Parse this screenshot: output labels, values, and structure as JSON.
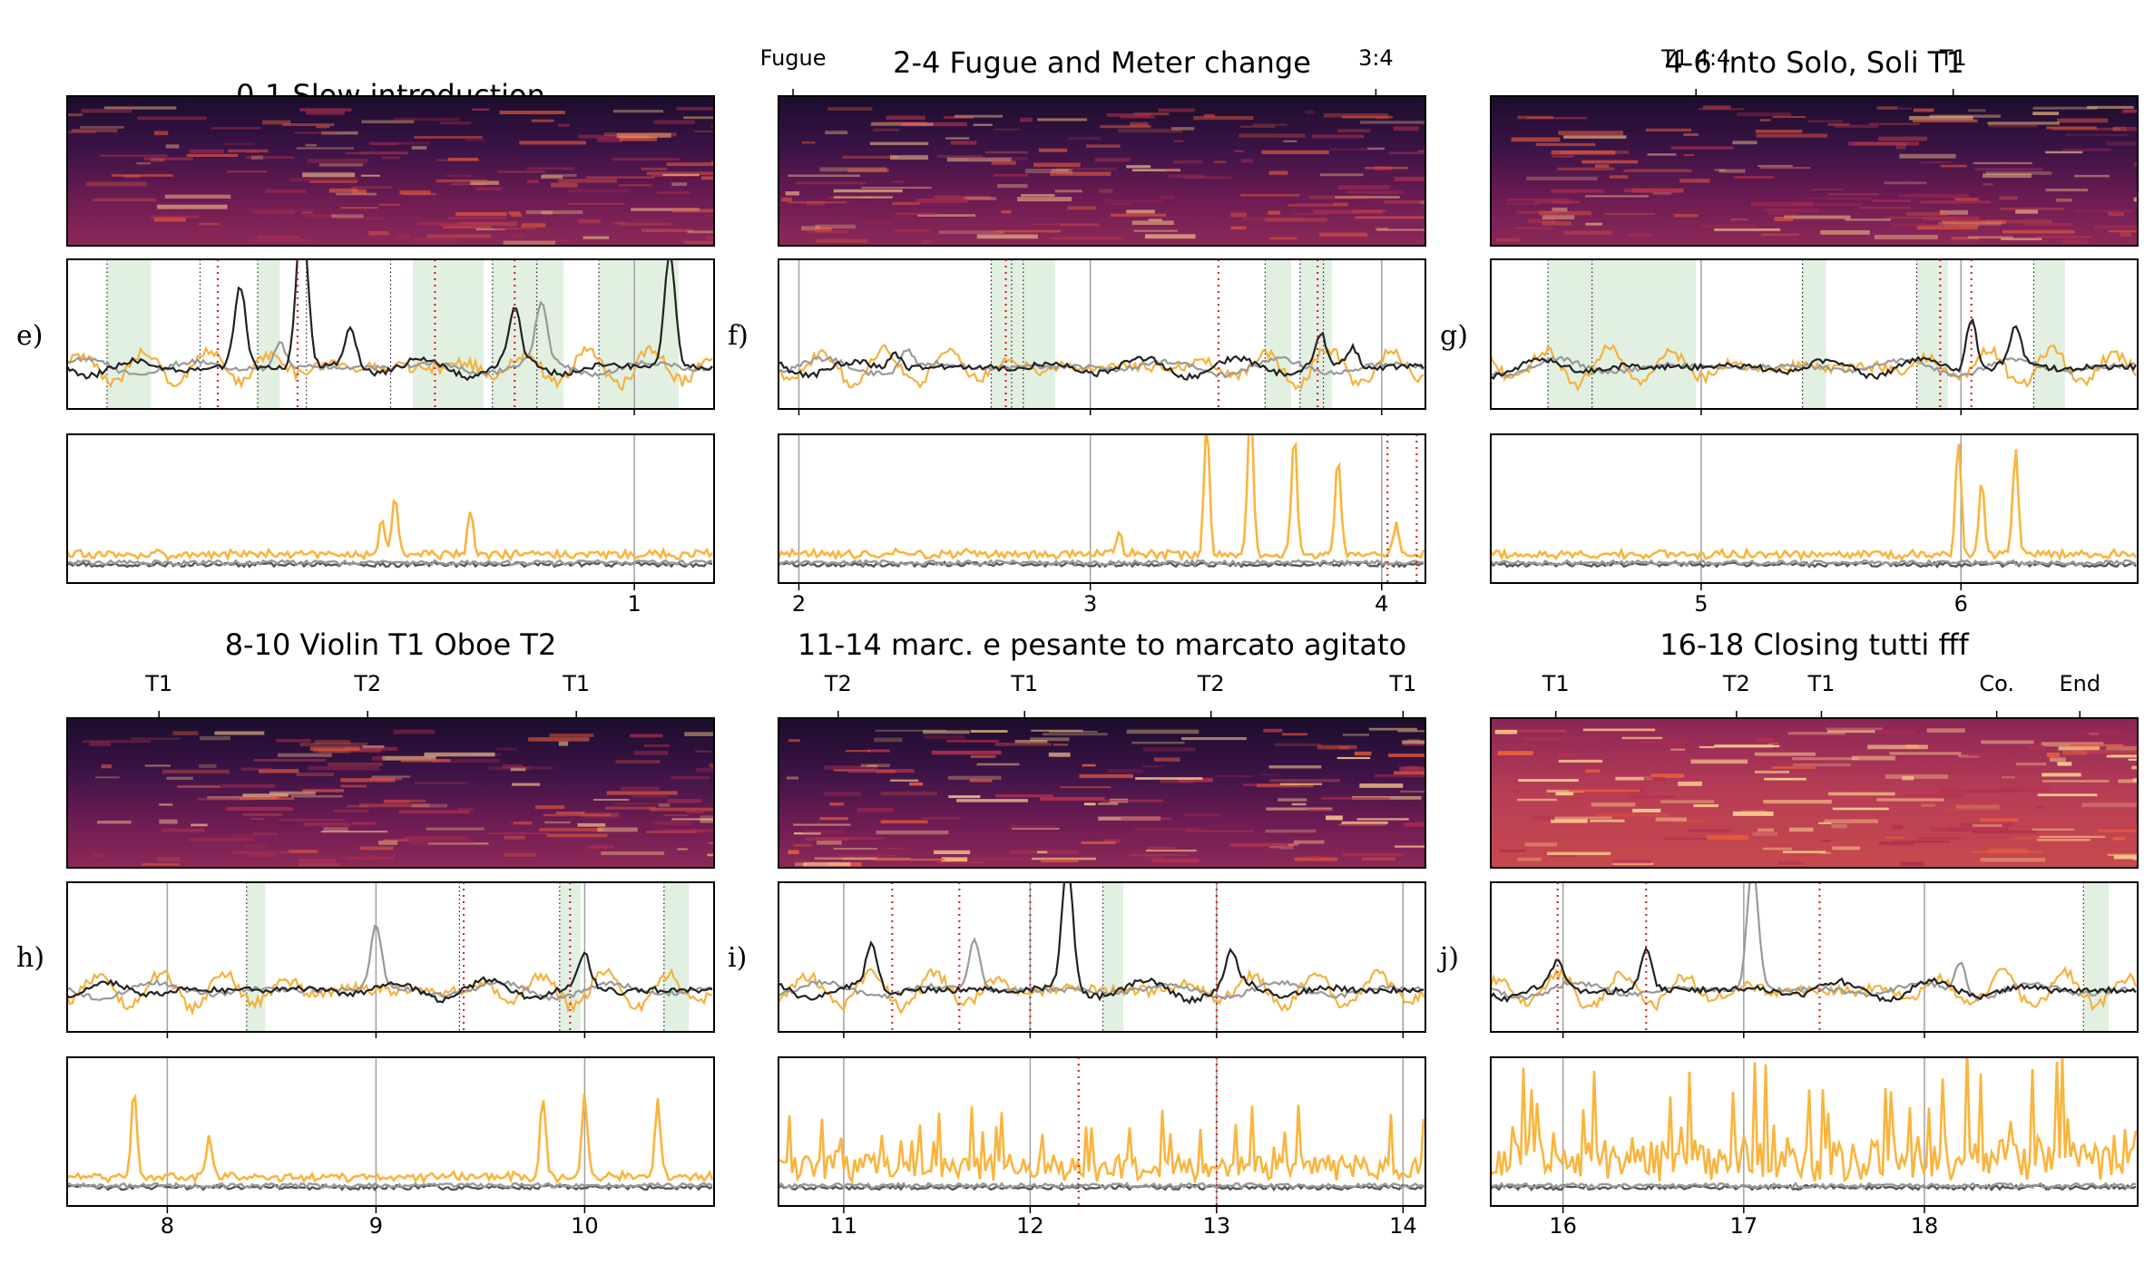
{
  "chart_data": [
    {
      "type": "line",
      "title": "0-1 Slow introduction",
      "row_label": "e)",
      "top_ticks": [],
      "xlim": [
        -0.28,
        1.18
      ],
      "x_ticks": [
        1
      ],
      "seed": 11,
      "green_spans": [
        [
          -0.19,
          -0.09
        ],
        [
          0.15,
          0.2
        ],
        [
          0.5,
          0.66
        ],
        [
          0.68,
          0.84
        ],
        [
          0.92,
          1.1
        ]
      ],
      "dotted_lines": [
        -0.19,
        0.02,
        0.15,
        0.26,
        0.45,
        0.68,
        0.78,
        0.92
      ],
      "red_lines": [
        0.06,
        0.24,
        0.55,
        0.73
      ],
      "energy_red_lines": [],
      "novelty_peaks_black": [
        [
          0.11,
          1.3
        ],
        [
          0.25,
          2.5
        ],
        [
          0.36,
          0.6
        ],
        [
          0.73,
          0.8
        ],
        [
          1.08,
          1.8
        ]
      ],
      "novelty_peaks_gray": [
        [
          0.2,
          0.4
        ],
        [
          0.79,
          0.9
        ]
      ],
      "energy_peaks_orange": [
        [
          0.43,
          0.45
        ],
        [
          0.46,
          0.7
        ],
        [
          0.63,
          0.55
        ]
      ],
      "energy_level": 0.06
    },
    {
      "type": "line",
      "title": "2-4 Fugue and Meter change",
      "row_label": "f)",
      "top_ticks": [
        {
          "x": 1.98,
          "label": "Fugue"
        },
        {
          "x": 3.98,
          "label": "3:4"
        }
      ],
      "xlim": [
        1.93,
        4.15
      ],
      "x_ticks": [
        2,
        3,
        4
      ],
      "seed": 23,
      "green_spans": [
        [
          2.66,
          2.88
        ],
        [
          3.6,
          3.69
        ],
        [
          3.72,
          3.83
        ]
      ],
      "dotted_lines": [
        2.66,
        2.73,
        2.77,
        3.6,
        3.72,
        3.8
      ],
      "red_lines": [
        2.71,
        3.44,
        3.78
      ],
      "energy_red_lines": [
        4.02,
        4.12
      ],
      "novelty_peaks_black": [
        [
          2.33,
          0.25
        ],
        [
          3.79,
          0.5
        ],
        [
          3.9,
          0.3
        ]
      ],
      "novelty_peaks_gray": [
        [
          2.37,
          0.3
        ]
      ],
      "energy_peaks_orange": [
        [
          3.1,
          0.25
        ],
        [
          3.4,
          1.6
        ],
        [
          3.55,
          1.9
        ],
        [
          3.7,
          1.5
        ],
        [
          3.85,
          1.2
        ],
        [
          4.05,
          0.4
        ]
      ],
      "energy_level": 0.08
    },
    {
      "type": "line",
      "title": "4-6 into Solo, Soli T1",
      "row_label": "g)",
      "top_ticks": [
        {
          "x": 4.98,
          "label": "T1 4:4"
        },
        {
          "x": 5.97,
          "label": "T1"
        }
      ],
      "xlim": [
        4.19,
        6.68
      ],
      "x_ticks": [
        5,
        6
      ],
      "seed": 37,
      "green_spans": [
        [
          4.41,
          4.98
        ],
        [
          5.39,
          5.48
        ],
        [
          5.83,
          5.95
        ],
        [
          6.28,
          6.4
        ]
      ],
      "dotted_lines": [
        4.41,
        4.58,
        5.39,
        5.83,
        6.28
      ],
      "red_lines": [
        5.92,
        6.04
      ],
      "energy_red_lines": [],
      "novelty_peaks_black": [
        [
          6.04,
          0.85
        ],
        [
          6.21,
          0.6
        ]
      ],
      "novelty_peaks_gray": [],
      "energy_peaks_orange": [
        [
          5.99,
          1.4
        ],
        [
          6.08,
          0.9
        ],
        [
          6.21,
          1.3
        ]
      ],
      "energy_level": 0.06
    },
    {
      "type": "line",
      "title": "8-10 Violin T1 Oboe T2",
      "row_label": "h)",
      "top_ticks": [
        {
          "x": 7.96,
          "label": "T1"
        },
        {
          "x": 8.96,
          "label": "T2"
        },
        {
          "x": 9.96,
          "label": "T1"
        }
      ],
      "xlim": [
        7.52,
        10.62
      ],
      "x_ticks": [
        8,
        9,
        10
      ],
      "seed": 51,
      "green_spans": [
        [
          8.38,
          8.47
        ],
        [
          9.88,
          9.98
        ],
        [
          10.38,
          10.5
        ]
      ],
      "dotted_lines": [
        8.38,
        9.4,
        9.88,
        10.38
      ],
      "red_lines": [
        9.42,
        9.93
      ],
      "energy_red_lines": [],
      "novelty_peaks_black": [
        [
          10.0,
          0.5
        ]
      ],
      "novelty_peaks_gray": [
        [
          9.0,
          1.0
        ]
      ],
      "energy_peaks_orange": [
        [
          7.84,
          1.1
        ],
        [
          8.2,
          0.5
        ],
        [
          9.8,
          1.0
        ],
        [
          10.0,
          1.0
        ],
        [
          10.35,
          0.9
        ]
      ],
      "energy_level": 0.08
    },
    {
      "type": "line",
      "title": "11-14 marc. e pesante to marcato agitato",
      "row_label": "i)",
      "top_ticks": [
        {
          "x": 10.97,
          "label": "T2"
        },
        {
          "x": 11.97,
          "label": "T1"
        },
        {
          "x": 12.97,
          "label": "T2"
        },
        {
          "x": 14.0,
          "label": "T1"
        }
      ],
      "xlim": [
        10.65,
        14.12
      ],
      "x_ticks": [
        11,
        12,
        13,
        14
      ],
      "seed": 67,
      "green_spans": [
        [
          12.39,
          12.5
        ]
      ],
      "dotted_lines": [
        12.39
      ],
      "red_lines": [
        11.26,
        11.62,
        12.0,
        13.0
      ],
      "energy_red_lines": [
        12.26,
        13.0
      ],
      "novelty_peaks_black": [
        [
          11.15,
          0.7
        ],
        [
          12.2,
          2.0
        ],
        [
          13.08,
          0.5
        ]
      ],
      "novelty_peaks_gray": [
        [
          11.7,
          0.8
        ]
      ],
      "energy_peaks_orange": [],
      "energy_level": 0.5
    },
    {
      "type": "line",
      "title": "16-18 Closing tutti fff",
      "row_label": "j)",
      "top_ticks": [
        {
          "x": 15.96,
          "label": "T1"
        },
        {
          "x": 16.96,
          "label": "T2"
        },
        {
          "x": 17.43,
          "label": "T1"
        },
        {
          "x": 18.4,
          "label": "Co."
        },
        {
          "x": 18.86,
          "label": "End"
        }
      ],
      "xlim": [
        15.6,
        19.18
      ],
      "x_ticks": [
        16,
        17,
        18
      ],
      "seed": 83,
      "green_spans": [
        [
          18.88,
          19.02
        ]
      ],
      "dotted_lines": [
        18.88
      ],
      "red_lines": [
        15.97,
        16.46,
        17.42
      ],
      "energy_red_lines": [],
      "novelty_peaks_black": [
        [
          15.97,
          0.4
        ],
        [
          16.46,
          0.6
        ]
      ],
      "novelty_peaks_gray": [
        [
          17.05,
          2.0
        ],
        [
          18.2,
          0.5
        ]
      ],
      "energy_peaks_orange": [],
      "energy_level": 0.9
    }
  ]
}
